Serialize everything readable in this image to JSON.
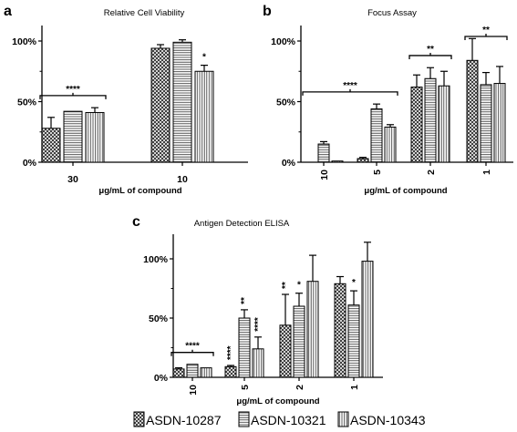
{
  "chart_data": [
    {
      "panel": "a",
      "type": "bar",
      "title": "Relative Cell Viability",
      "xlabel": "μg/mL of compound",
      "ylabel": "",
      "ylim": [
        0,
        120
      ],
      "yticks": [
        "0%",
        "50%",
        "100%"
      ],
      "categories": [
        "30",
        "10"
      ],
      "series": [
        {
          "values": [
            28,
            94
          ],
          "errors": [
            9,
            3
          ]
        },
        {
          "values": [
            42,
            99
          ],
          "errors": [
            0,
            2
          ]
        },
        {
          "values": [
            41,
            75
          ],
          "errors": [
            4,
            5
          ]
        }
      ],
      "annotations": [
        {
          "text": "****",
          "bracket": [
            0,
            0
          ]
        },
        {
          "text": "*",
          "at": [
            1,
            2
          ]
        }
      ]
    },
    {
      "panel": "b",
      "type": "bar",
      "title": "Focus Assay",
      "xlabel": "μg/mL of compound",
      "ylabel": "",
      "ylim": [
        0,
        120
      ],
      "yticks": [
        "0%",
        "50%",
        "100%"
      ],
      "categories": [
        "10",
        "5",
        "2",
        "1"
      ],
      "series": [
        {
          "values": [
            0,
            3,
            62,
            84
          ],
          "errors": [
            0,
            1,
            10,
            18
          ]
        },
        {
          "values": [
            15,
            44,
            69,
            64
          ],
          "errors": [
            2,
            4,
            9,
            10
          ]
        },
        {
          "values": [
            1,
            29,
            63,
            65
          ],
          "errors": [
            0,
            2,
            12,
            14
          ]
        }
      ],
      "annotations": [
        {
          "text": "****",
          "bracket": [
            0,
            1
          ]
        },
        {
          "text": "**",
          "bracket": [
            2,
            2
          ]
        },
        {
          "text": "**",
          "bracket": [
            3,
            3
          ]
        }
      ]
    },
    {
      "panel": "c",
      "type": "bar",
      "title": "Antigen Detection ELISA",
      "xlabel": "μg/mL of compound",
      "ylabel": "",
      "ylim": [
        0,
        120
      ],
      "yticks": [
        "0%",
        "50%",
        "100%"
      ],
      "categories": [
        "10",
        "5",
        "2",
        "1"
      ],
      "series": [
        {
          "values": [
            7,
            9,
            44,
            79
          ],
          "errors": [
            1,
            1,
            26,
            6
          ]
        },
        {
          "values": [
            11,
            50,
            60,
            61
          ],
          "errors": [
            0,
            7,
            11,
            12
          ]
        },
        {
          "values": [
            8,
            24,
            81,
            98
          ],
          "errors": [
            0,
            10,
            22,
            16
          ]
        }
      ],
      "annotations": [
        {
          "text": "****",
          "bracket": [
            0,
            0
          ]
        },
        {
          "text": "****",
          "at": [
            1,
            0
          ],
          "vertical": true
        },
        {
          "text": "**",
          "at": [
            1,
            1
          ],
          "vertical": true
        },
        {
          "text": "****",
          "at": [
            1,
            2
          ],
          "vertical": true
        },
        {
          "text": "**",
          "at": [
            2,
            0
          ],
          "vertical": true
        },
        {
          "text": "*",
          "at": [
            2,
            1
          ]
        },
        {
          "text": "*",
          "at": [
            3,
            1
          ]
        }
      ]
    }
  ],
  "legend": [
    "ASDN-10287",
    "ASDN-10321",
    "ASDN-10343"
  ]
}
